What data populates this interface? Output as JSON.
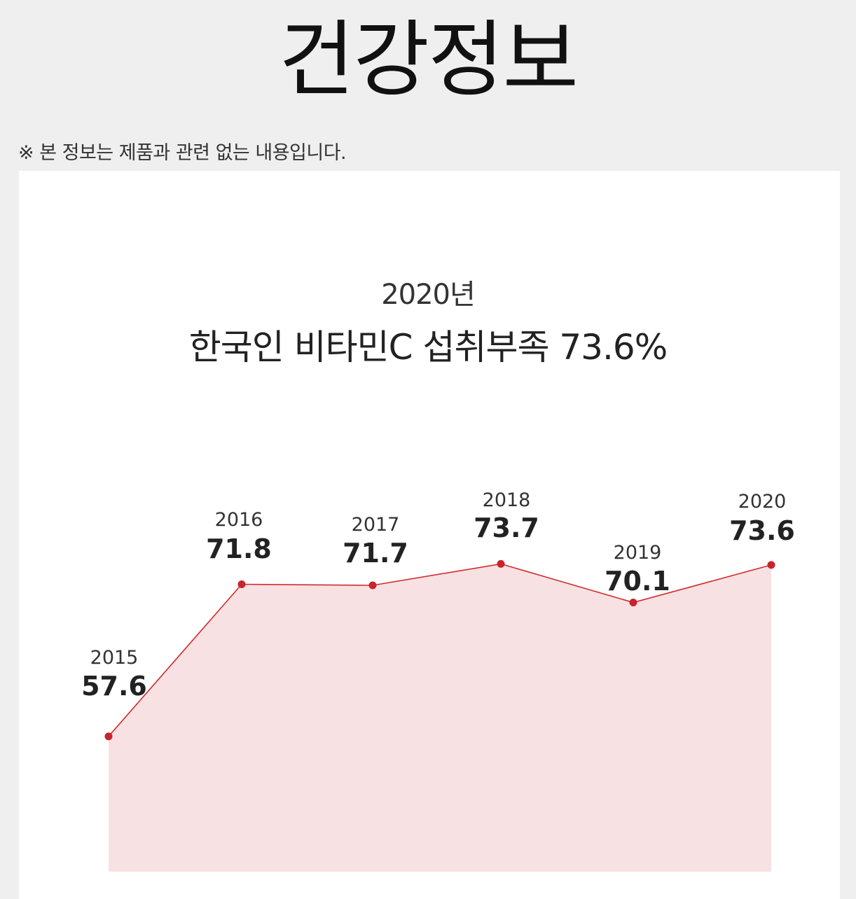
{
  "header": {
    "title": "건강정보",
    "disclaimer": "※ 본 정보는 제품과 관련 없는 내용입니다."
  },
  "chart_data": {
    "type": "area",
    "subtitle": "2020년",
    "title": "한국인 비타민C 섭취부족 73.6%",
    "categories": [
      "2015",
      "2016",
      "2017",
      "2018",
      "2019",
      "2020"
    ],
    "series": [
      {
        "values": [
          57.6,
          71.8,
          71.7,
          73.7,
          70.1,
          73.6
        ]
      }
    ],
    "value_labels": [
      "57.6",
      "71.8",
      "71.7",
      "73.7",
      "70.1",
      "73.6"
    ],
    "xlabel": "",
    "ylabel": "",
    "grid": false,
    "colors": {
      "line": "#d22b2b",
      "fill": "#f7e1e3",
      "marker": "#c8242b"
    }
  }
}
